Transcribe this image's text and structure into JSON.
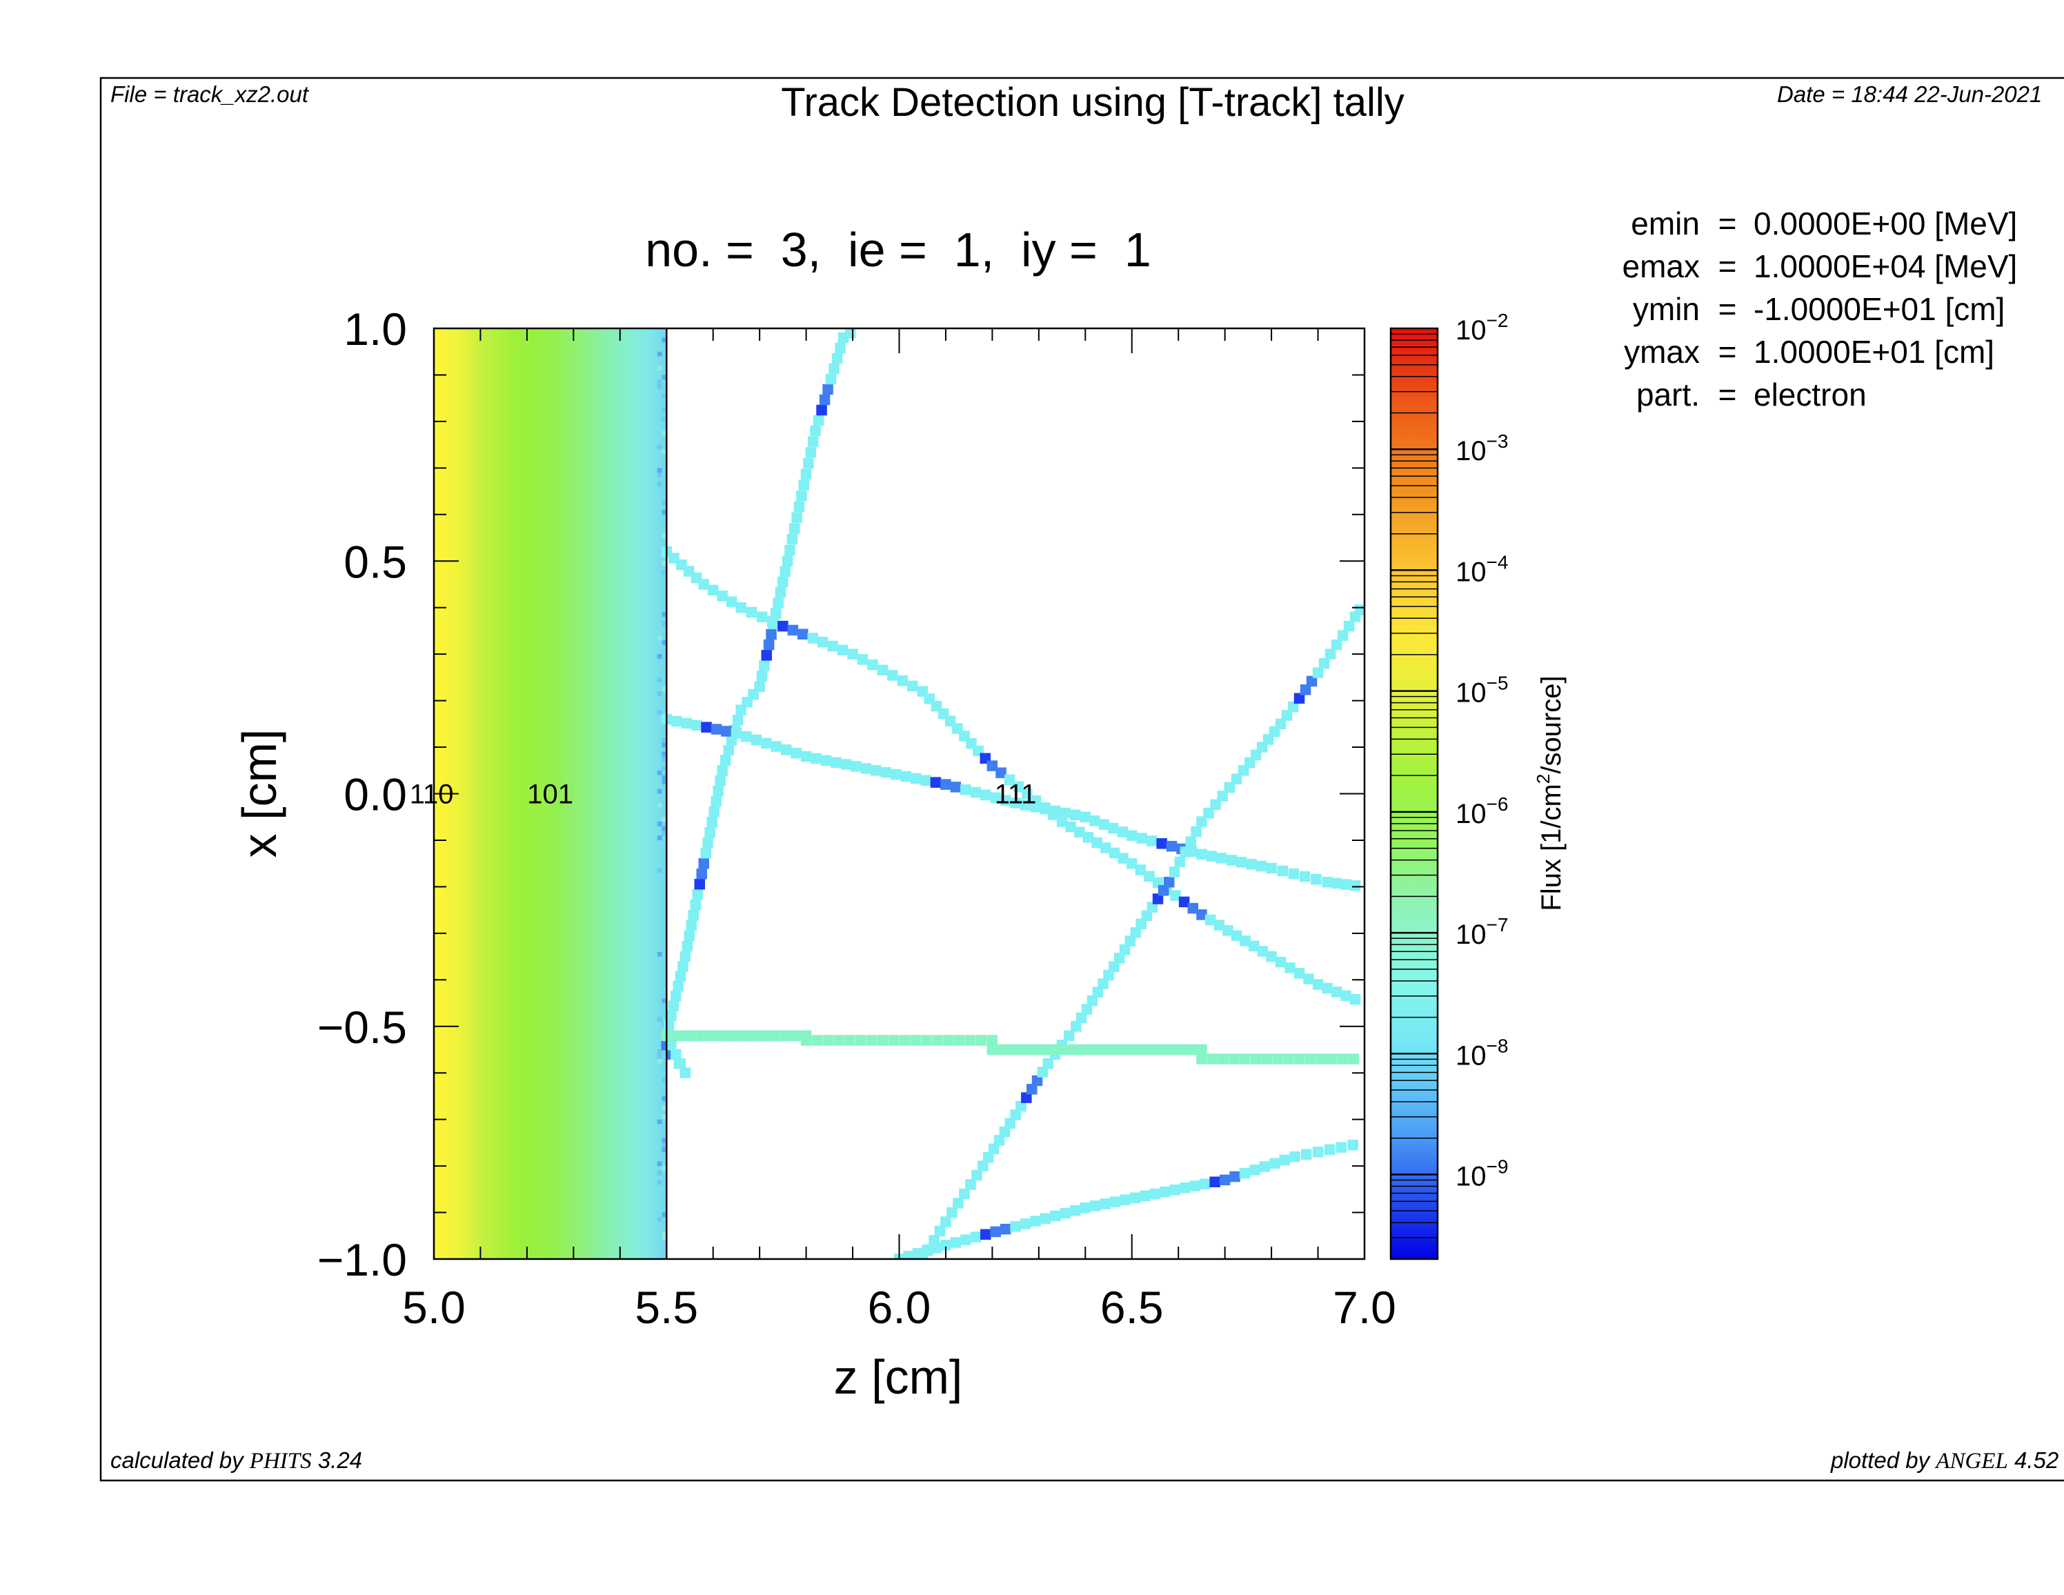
{
  "header": {
    "file_label": "File = track_xz2.out",
    "title": "Track Detection using [T-track] tally",
    "date_label": "Date = 18:44 22-Jun-2021"
  },
  "footer": {
    "calculated_prefix": "calculated by ",
    "calculated_app": "PHITS",
    "calculated_version": " 3.24",
    "plotted_prefix": "plotted by ",
    "plotted_app": "ANGEL",
    "plotted_version": " 4.52"
  },
  "params": [
    {
      "name": "emin",
      "eq": "=",
      "value": "0.0000E+00 [MeV]"
    },
    {
      "name": "emax",
      "eq": "=",
      "value": "1.0000E+04 [MeV]"
    },
    {
      "name": "ymin",
      "eq": "=",
      "value": "-1.0000E+01 [cm]"
    },
    {
      "name": "ymax",
      "eq": "=",
      "value": "1.0000E+01 [cm]"
    },
    {
      "name": "part.",
      "eq": "=",
      "value": "electron"
    }
  ],
  "colors": {
    "frame": "#000000",
    "track_cyan": "#7ff0f4",
    "track_green": "#86f4c6",
    "track_blue_dark": "#1e3cf0",
    "track_blue": "#3f7df0"
  },
  "chart_data": {
    "type": "heatmap",
    "title": "no. =  3,  ie =  1,  iy =  1",
    "xlabel": "z [cm]",
    "ylabel": "x [cm]",
    "xlim": [
      5.0,
      7.0
    ],
    "ylim": [
      -1.0,
      1.0
    ],
    "x_ticks": [
      "5.0",
      "5.5",
      "6.0",
      "6.5",
      "7.0"
    ],
    "y_ticks": [
      "1.0",
      "0.5",
      "0.0",
      "−0.5",
      "−1.0"
    ],
    "x_tick_values": [
      5.0,
      5.5,
      6.0,
      6.5,
      7.0
    ],
    "y_tick_values": [
      1.0,
      0.5,
      0.0,
      -0.5,
      -1.0
    ],
    "colorbar": {
      "label": "Flux [1/cm²/source]",
      "label_main": "Flux [1/cm",
      "label_sup": "2",
      "label_end": "/source]",
      "scale": "log",
      "min": 2e-10,
      "max": 0.01,
      "ticks": [
        {
          "base": "10",
          "exp": "−2",
          "value": -2
        },
        {
          "base": "10",
          "exp": "−3",
          "value": -3
        },
        {
          "base": "10",
          "exp": "−4",
          "value": -4
        },
        {
          "base": "10",
          "exp": "−5",
          "value": -5
        },
        {
          "base": "10",
          "exp": "−6",
          "value": -6
        },
        {
          "base": "10",
          "exp": "−7",
          "value": -7
        },
        {
          "base": "10",
          "exp": "−8",
          "value": -8
        },
        {
          "base": "10",
          "exp": "−9",
          "value": -9
        }
      ]
    },
    "region_labels": [
      {
        "text": "110",
        "z": 4.995,
        "x": 0.0
      },
      {
        "text": "101",
        "z": 5.25,
        "x": 0.0
      },
      {
        "text": "111",
        "z": 6.25,
        "x": 0.0
      }
    ],
    "slab": {
      "z": [
        5.0,
        5.5
      ],
      "x": [
        -1.0,
        1.0
      ],
      "flux_at_z5": 0.0001,
      "flux_at_z5_25": 1e-05,
      "flux_at_z5_5": 1e-08
    },
    "boundary_z": 5.5,
    "tracks": [
      {
        "flux": 1e-08,
        "points": [
          [
            5.5,
            -0.54
          ],
          [
            5.54,
            -0.6
          ],
          [
            5.5,
            -0.52
          ],
          [
            5.54,
            -0.35
          ],
          [
            5.58,
            -0.15
          ],
          [
            5.62,
            0.05
          ],
          [
            5.66,
            0.18
          ],
          [
            5.7,
            0.23
          ],
          [
            5.76,
            0.5
          ],
          [
            5.82,
            0.78
          ],
          [
            5.88,
            0.98
          ],
          [
            5.91,
            1.0
          ]
        ]
      },
      {
        "flux": 1e-08,
        "points": [
          [
            5.5,
            0.52
          ],
          [
            5.58,
            0.45
          ],
          [
            5.66,
            0.4
          ],
          [
            5.75,
            0.36
          ],
          [
            5.9,
            0.3
          ],
          [
            6.05,
            0.22
          ],
          [
            6.2,
            0.06
          ],
          [
            6.35,
            -0.06
          ],
          [
            6.5,
            -0.15
          ],
          [
            6.65,
            -0.26
          ],
          [
            6.8,
            -0.35
          ],
          [
            6.9,
            -0.41
          ],
          [
            7.0,
            -0.45
          ]
        ]
      },
      {
        "flux": 1e-08,
        "points": [
          [
            5.5,
            0.16
          ],
          [
            5.65,
            0.13
          ],
          [
            5.8,
            0.08
          ],
          [
            5.95,
            0.05
          ],
          [
            6.1,
            0.02
          ],
          [
            6.25,
            -0.02
          ],
          [
            6.4,
            -0.05
          ],
          [
            6.5,
            -0.09
          ],
          [
            6.65,
            -0.13
          ],
          [
            6.8,
            -0.16
          ],
          [
            6.92,
            -0.19
          ],
          [
            7.0,
            -0.2
          ]
        ]
      },
      {
        "flux": 1e-08,
        "points": [
          [
            6.05,
            -1.0
          ],
          [
            6.1,
            -0.92
          ],
          [
            6.18,
            -0.8
          ],
          [
            6.25,
            -0.69
          ],
          [
            6.32,
            -0.58
          ],
          [
            6.38,
            -0.5
          ],
          [
            6.45,
            -0.39
          ],
          [
            6.52,
            -0.28
          ],
          [
            6.58,
            -0.19
          ],
          [
            6.65,
            -0.06
          ],
          [
            6.74,
            0.05
          ],
          [
            6.82,
            0.15
          ],
          [
            6.9,
            0.26
          ],
          [
            6.98,
            0.38
          ],
          [
            7.0,
            0.41
          ]
        ]
      },
      {
        "flux": 1e-08,
        "points": [
          [
            6.0,
            -1.0
          ],
          [
            6.1,
            -0.97
          ],
          [
            6.25,
            -0.93
          ],
          [
            6.4,
            -0.89
          ],
          [
            6.55,
            -0.86
          ],
          [
            6.7,
            -0.83
          ],
          [
            6.85,
            -0.78
          ],
          [
            6.95,
            -0.76
          ],
          [
            7.0,
            -0.75
          ]
        ]
      },
      {
        "flux": 2e-07,
        "points": [
          [
            5.5,
            -0.52
          ],
          [
            5.8,
            -0.52
          ],
          [
            5.8,
            -0.53
          ],
          [
            6.2,
            -0.53
          ],
          [
            6.2,
            -0.55
          ],
          [
            6.65,
            -0.55
          ],
          [
            6.65,
            -0.57
          ],
          [
            7.0,
            -0.57
          ]
        ]
      }
    ]
  }
}
